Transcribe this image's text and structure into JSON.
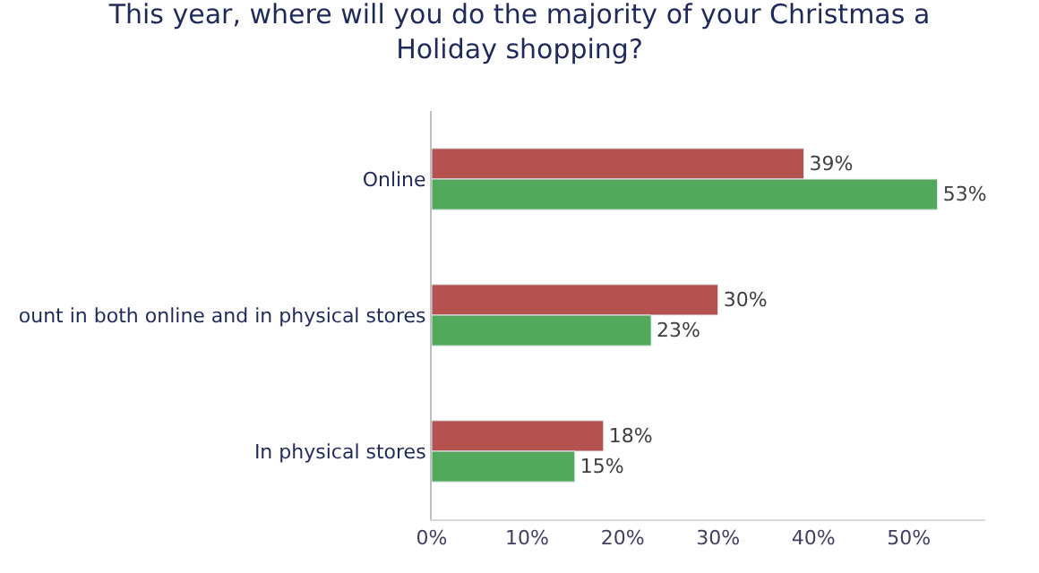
{
  "chart_data": {
    "type": "bar",
    "orientation": "horizontal",
    "title": "This year, where will you do the majority of your Christmas a\nHoliday shopping?",
    "categories": [
      "Online",
      "ount in both online and in physical stores",
      "In physical stores"
    ],
    "series": [
      {
        "color": "#b5514f",
        "values": [
          39,
          30,
          18
        ],
        "value_labels": [
          "39%",
          "30%",
          "18%"
        ]
      },
      {
        "color": "#52a95c",
        "values": [
          53,
          23,
          15
        ],
        "value_labels": [
          "53%",
          "23%",
          "15%"
        ]
      }
    ],
    "xlim": [
      0,
      58
    ],
    "xticks": [
      {
        "value": 0,
        "label": "0%"
      },
      {
        "value": 10,
        "label": "10%"
      },
      {
        "value": 20,
        "label": "20%"
      },
      {
        "value": 30,
        "label": "30%"
      },
      {
        "value": 40,
        "label": "40%"
      },
      {
        "value": 50,
        "label": "50%"
      }
    ]
  }
}
